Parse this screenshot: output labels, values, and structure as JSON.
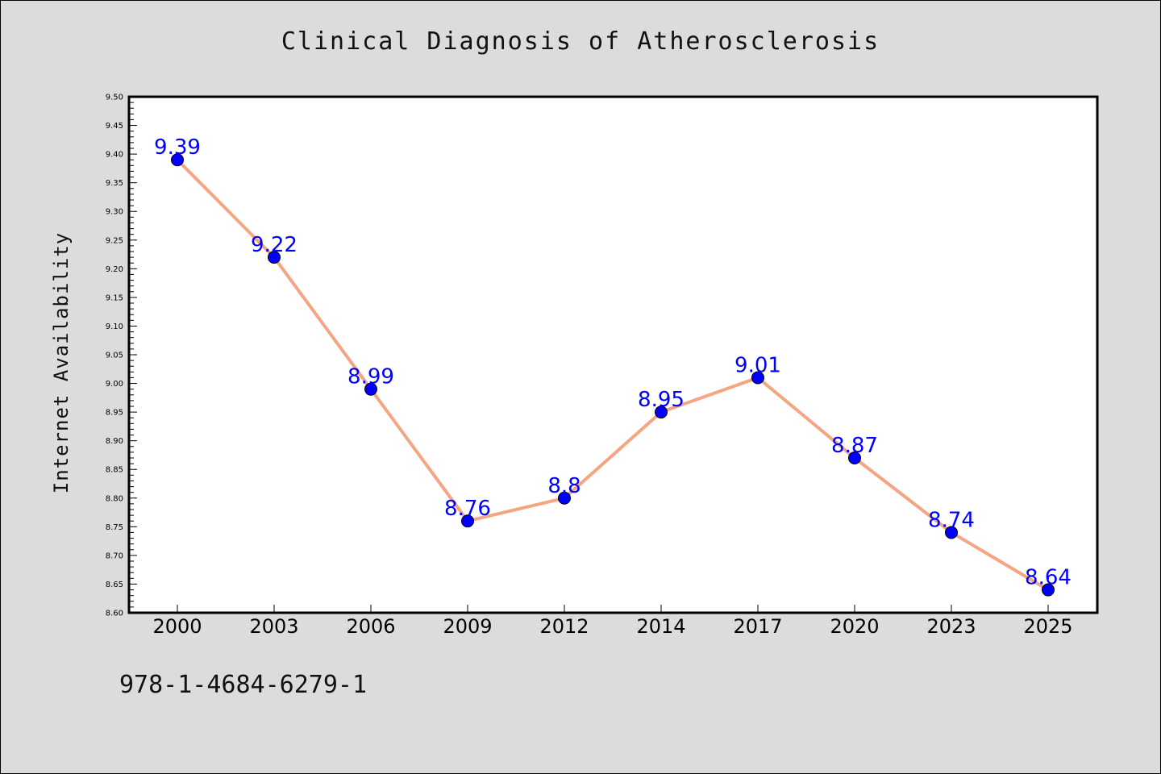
{
  "figure": {
    "isbn_text": "978-1-4684-6279-1"
  },
  "colors": {
    "background": "#dcdcdc",
    "plot_background": "#ffffff",
    "line": "#f4a582",
    "marker": "#0000ff",
    "label": "#0000ff"
  },
  "chart_data": {
    "type": "line",
    "title": "Clinical Diagnosis of Atherosclerosis",
    "xlabel": "",
    "ylabel": "Internet Availability",
    "categories": [
      "2000",
      "2003",
      "2006",
      "2009",
      "2012",
      "2014",
      "2017",
      "2020",
      "2023",
      "2025"
    ],
    "series": [
      {
        "values": [
          9.39,
          9.22,
          8.99,
          8.76,
          8.8,
          8.95,
          9.01,
          8.87,
          8.74,
          8.64
        ],
        "data_labels": [
          "9.39",
          "9.22",
          "8.99",
          "8.76",
          "8.8",
          "8.95",
          "9.01",
          "8.87",
          "8.74",
          "8.64"
        ]
      }
    ],
    "ylim": [
      8.6,
      9.5
    ],
    "y_ticks": [
      "8.60",
      "8.65",
      "8.70",
      "8.75",
      "8.80",
      "8.85",
      "8.90",
      "8.95",
      "9.00",
      "9.05",
      "9.10",
      "9.15",
      "9.20",
      "9.25",
      "9.30",
      "9.35",
      "9.40",
      "9.45",
      "9.50"
    ],
    "grid": false,
    "legend": "none"
  }
}
